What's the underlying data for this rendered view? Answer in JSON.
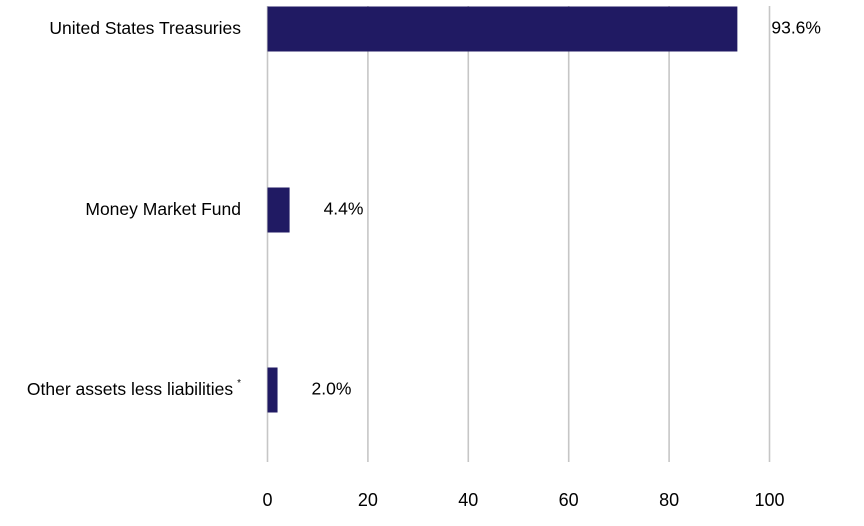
{
  "chart_data": {
    "type": "bar",
    "orientation": "horizontal",
    "categories": [
      "United States Treasuries",
      "Money Market Fund",
      "Other assets less liabilities"
    ],
    "category_footnote_marks": [
      "",
      "",
      "*"
    ],
    "values": [
      93.6,
      4.4,
      2.0
    ],
    "data_labels": [
      "93.6%",
      "4.4%",
      "2.0%"
    ],
    "x_ticks": [
      0,
      20,
      40,
      60,
      80,
      100
    ],
    "x_tick_labels": [
      "0",
      "20",
      "40",
      "60",
      "80",
      "100"
    ],
    "xlim": [
      0,
      100
    ],
    "grid": "vertical",
    "legend": "none",
    "bar_color": "#201a63",
    "grid_color": "#c6c6c6",
    "title": "",
    "xlabel": "",
    "ylabel": ""
  }
}
